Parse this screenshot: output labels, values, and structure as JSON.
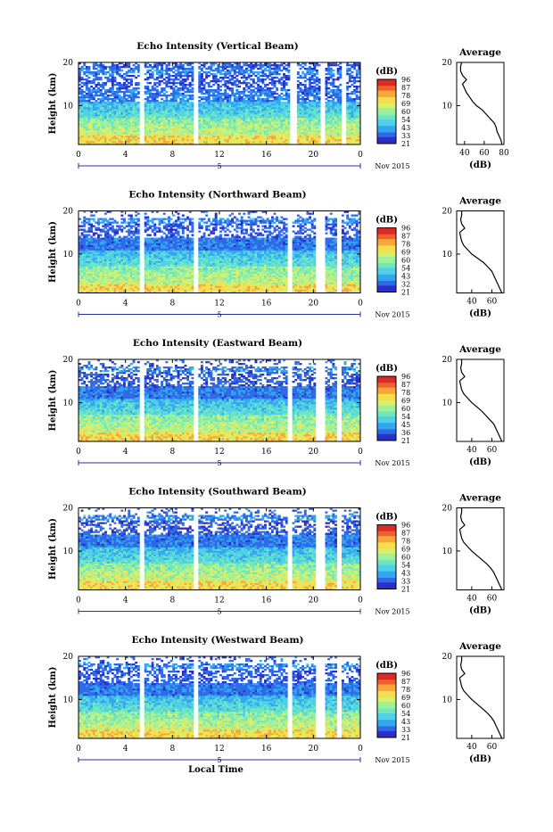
{
  "colors": {
    "colormap": [
      "#2b2fc8",
      "#2f6be8",
      "#33a6f0",
      "#4fd0e6",
      "#6ee7bf",
      "#9ef09a",
      "#d8ef6a",
      "#f7dc4c",
      "#f7a63a",
      "#f0602e",
      "#d92a26"
    ],
    "frame": "#000000",
    "gap": "#ffffff"
  },
  "labels": {
    "ylabel": "Height (km)",
    "colorbar_unit": "(dB)",
    "avg_title": "Average",
    "avg_xlabel": "(dB)",
    "date_day": "5",
    "date_month": "Nov 2015",
    "xlabel_bottom": "Local Time"
  },
  "chart_data": [
    {
      "type": "heatmap",
      "title": "Echo Intensity (Vertical Beam)",
      "x_ticks": [
        "0",
        "4",
        "8",
        "12",
        "16",
        "20",
        "0"
      ],
      "xlim": [
        0,
        24
      ],
      "y_ticks": [
        "10",
        "20"
      ],
      "ylim": [
        1,
        20
      ],
      "colorbar_ticks": [
        "96",
        "87",
        "78",
        "69",
        "60",
        "54",
        "43",
        "33",
        "21"
      ],
      "colorbar_range": [
        21,
        96
      ],
      "data_gaps_hours": [
        [
          5.2,
          5.6
        ],
        [
          9.8,
          10.1
        ],
        [
          18.1,
          18.5
        ],
        [
          20.6,
          21.0
        ],
        [
          22.5,
          22.8
        ]
      ],
      "average_profile": {
        "x_ticks": [
          "40",
          "60",
          "80"
        ],
        "xlim": [
          32,
          80
        ],
        "y_ticks": [
          "10",
          "20"
        ],
        "ylim": [
          1,
          20
        ],
        "height_km": [
          1,
          2,
          3,
          4,
          5,
          6,
          7,
          8,
          9,
          10,
          11,
          12,
          13,
          14,
          15,
          16,
          17,
          18,
          19,
          20
        ],
        "db": [
          78,
          77,
          75,
          73,
          72,
          70,
          66,
          62,
          58,
          52,
          48,
          45,
          42,
          40,
          38,
          42,
          38,
          36,
          36,
          37
        ]
      }
    },
    {
      "type": "heatmap",
      "title": "Echo Intensity (Northward Beam)",
      "x_ticks": [
        "0",
        "4",
        "8",
        "12",
        "16",
        "20",
        "0"
      ],
      "xlim": [
        0,
        24
      ],
      "y_ticks": [
        "10",
        "20"
      ],
      "ylim": [
        1,
        20
      ],
      "colorbar_ticks": [
        "96",
        "87",
        "78",
        "69",
        "60",
        "54",
        "43",
        "32",
        "21"
      ],
      "colorbar_range": [
        21,
        96
      ],
      "data_gaps_hours": [
        [
          5.2,
          5.5
        ],
        [
          9.8,
          10.1
        ],
        [
          17.8,
          18.2
        ],
        [
          20.3,
          21.0
        ],
        [
          22.0,
          22.3
        ]
      ],
      "average_profile": {
        "x_ticks": [
          "40",
          "60"
        ],
        "xlim": [
          25,
          72
        ],
        "y_ticks": [
          "10",
          "20"
        ],
        "ylim": [
          1,
          20
        ],
        "height_km": [
          1,
          2,
          3,
          4,
          5,
          6,
          7,
          8,
          9,
          10,
          11,
          12,
          13,
          14,
          15,
          16,
          17,
          18,
          19,
          20
        ],
        "db": [
          70,
          68,
          66,
          64,
          62,
          60,
          56,
          52,
          46,
          40,
          36,
          32,
          30,
          29,
          28,
          33,
          30,
          29,
          30,
          30
        ]
      }
    },
    {
      "type": "heatmap",
      "title": "Echo Intensity (Eastward Beam)",
      "x_ticks": [
        "0",
        "4",
        "8",
        "12",
        "16",
        "20",
        "0"
      ],
      "xlim": [
        0,
        24
      ],
      "y_ticks": [
        "10",
        "20"
      ],
      "ylim": [
        1,
        20
      ],
      "colorbar_ticks": [
        "96",
        "87",
        "78",
        "69",
        "60",
        "54",
        "45",
        "36",
        "21"
      ],
      "colorbar_range": [
        21,
        96
      ],
      "data_gaps_hours": [
        [
          5.2,
          5.5
        ],
        [
          9.8,
          10.1
        ],
        [
          17.8,
          18.2
        ],
        [
          20.3,
          21.0
        ],
        [
          22.0,
          22.3
        ]
      ],
      "average_profile": {
        "x_ticks": [
          "40",
          "60"
        ],
        "xlim": [
          25,
          72
        ],
        "y_ticks": [
          "10",
          "20"
        ],
        "ylim": [
          1,
          20
        ],
        "height_km": [
          1,
          2,
          3,
          4,
          5,
          6,
          7,
          8,
          9,
          10,
          11,
          12,
          13,
          14,
          15,
          16,
          17,
          18,
          19,
          20
        ],
        "db": [
          70,
          68,
          66,
          64,
          62,
          58,
          54,
          50,
          45,
          40,
          36,
          32,
          30,
          29,
          28,
          33,
          30,
          29,
          30,
          30
        ]
      }
    },
    {
      "type": "heatmap",
      "title": "Echo Intensity (Southward Beam)",
      "x_ticks": [
        "0",
        "4",
        "8",
        "12",
        "16",
        "20",
        "0"
      ],
      "xlim": [
        0,
        24
      ],
      "y_ticks": [
        "10",
        "20"
      ],
      "ylim": [
        1,
        20
      ],
      "colorbar_ticks": [
        "96",
        "87",
        "78",
        "69",
        "60",
        "54",
        "43",
        "33",
        "21"
      ],
      "colorbar_range": [
        21,
        96
      ],
      "data_gaps_hours": [
        [
          5.2,
          5.5
        ],
        [
          9.8,
          10.1
        ],
        [
          17.8,
          18.2
        ],
        [
          20.3,
          21.0
        ],
        [
          22.0,
          22.3
        ]
      ],
      "average_profile": {
        "x_ticks": [
          "40",
          "60"
        ],
        "xlim": [
          25,
          72
        ],
        "y_ticks": [
          "10",
          "20"
        ],
        "ylim": [
          1,
          20
        ],
        "height_km": [
          1,
          2,
          3,
          4,
          5,
          6,
          7,
          8,
          9,
          10,
          11,
          12,
          13,
          14,
          15,
          16,
          17,
          18,
          19,
          20
        ],
        "db": [
          70,
          68,
          66,
          64,
          62,
          59,
          55,
          50,
          45,
          40,
          36,
          32,
          30,
          29,
          28,
          33,
          30,
          29,
          30,
          30
        ]
      }
    },
    {
      "type": "heatmap",
      "title": "Echo Intensity (Westward Beam)",
      "x_ticks": [
        "0",
        "4",
        "8",
        "12",
        "16",
        "20",
        "0"
      ],
      "xlim": [
        0,
        24
      ],
      "y_ticks": [
        "10",
        "20"
      ],
      "ylim": [
        1,
        20
      ],
      "colorbar_ticks": [
        "96",
        "87",
        "78",
        "69",
        "60",
        "54",
        "43",
        "33",
        "21"
      ],
      "colorbar_range": [
        21,
        96
      ],
      "data_gaps_hours": [
        [
          5.2,
          5.5
        ],
        [
          9.8,
          10.1
        ],
        [
          17.8,
          18.2
        ],
        [
          20.3,
          21.0
        ],
        [
          22.0,
          22.3
        ]
      ],
      "average_profile": {
        "x_ticks": [
          "40",
          "60"
        ],
        "xlim": [
          25,
          72
        ],
        "y_ticks": [
          "10",
          "20"
        ],
        "ylim": [
          1,
          20
        ],
        "height_km": [
          1,
          2,
          3,
          4,
          5,
          6,
          7,
          8,
          9,
          10,
          11,
          12,
          13,
          14,
          15,
          16,
          17,
          18,
          19,
          20
        ],
        "db": [
          70,
          68,
          66,
          64,
          62,
          59,
          55,
          50,
          45,
          40,
          36,
          32,
          30,
          29,
          28,
          33,
          30,
          29,
          30,
          30
        ]
      }
    }
  ]
}
